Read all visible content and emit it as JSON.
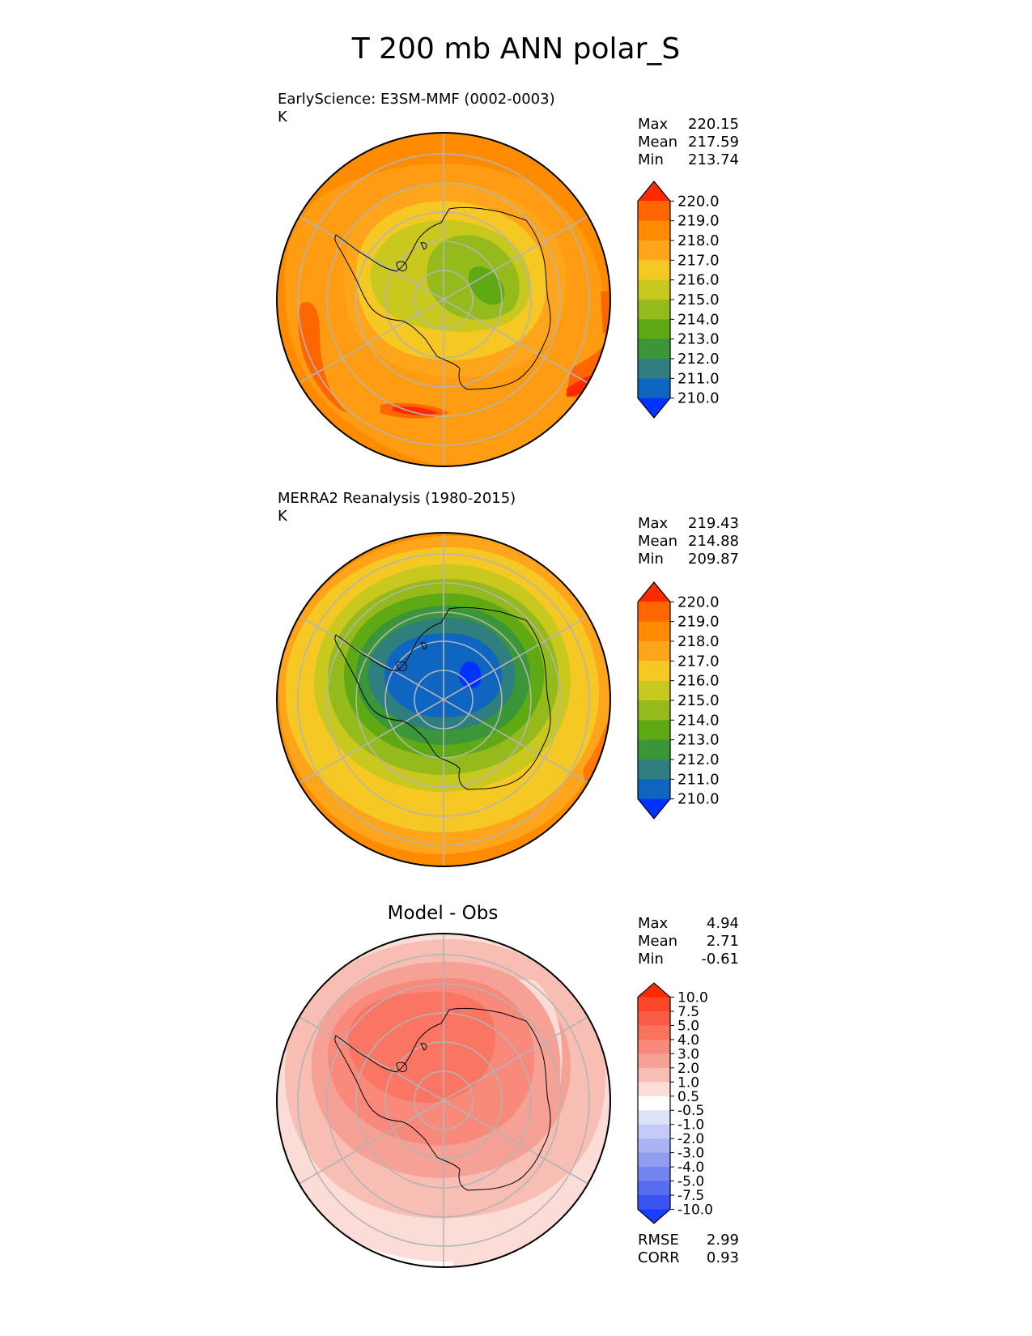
{
  "title": "T 200 mb ANN polar_S",
  "panels": [
    {
      "left_title": "EarlyScience: E3SM-MMF (0002-0003)",
      "units": "K",
      "stats": {
        "max_label": "Max",
        "max": "220.15",
        "mean_label": "Mean",
        "mean": "217.59",
        "min_label": "Min",
        "min": "213.74"
      }
    },
    {
      "left_title": "MERRA2 Reanalysis (1980-2015)",
      "units": "K",
      "stats": {
        "max_label": "Max",
        "max": "219.43",
        "mean_label": "Mean",
        "mean": "214.88",
        "min_label": "Min",
        "min": "209.87"
      }
    },
    {
      "center_title": "Model - Obs",
      "stats": {
        "max_label": "Max",
        "max": "4.94",
        "mean_label": "Mean",
        "mean": "2.71",
        "min_label": "Min",
        "min": "-0.61"
      },
      "metrics": {
        "rmse_label": "RMSE",
        "rmse": "2.99",
        "corr_label": "CORR",
        "corr": "0.93"
      }
    }
  ],
  "colorbars": {
    "temperature": {
      "ticks": [
        "220.0",
        "219.0",
        "218.0",
        "217.0",
        "216.0",
        "215.0",
        "214.0",
        "213.0",
        "212.0",
        "211.0",
        "210.0"
      ],
      "colors": [
        "#ff2a00",
        "#ff6600",
        "#ff8c00",
        "#ffa51c",
        "#f6c824",
        "#c9c81e",
        "#95ba1c",
        "#5ea914",
        "#3a9638",
        "#2e7f7e",
        "#0f66c0",
        "#0033ff"
      ]
    },
    "difference": {
      "ticks": [
        "10.0",
        "7.5",
        "5.0",
        "4.0",
        "3.0",
        "2.0",
        "1.0",
        "0.5",
        "-0.5",
        "-1.0",
        "-2.0",
        "-3.0",
        "-4.0",
        "-5.0",
        "-7.5",
        "-10.0"
      ],
      "colors": [
        "#ff2a00",
        "#fe472a",
        "#fc5c45",
        "#fb725f",
        "#f8897b",
        "#f6a196",
        "#f8bdb3",
        "#fbdcd6",
        "#ffffff",
        "#dde2f9",
        "#c4ccf6",
        "#a9b4f3",
        "#8e9cf1",
        "#7285ef",
        "#566df0",
        "#3a55f2",
        "#1a3cff"
      ]
    }
  },
  "chart_data": [
    {
      "type": "heatmap",
      "projection": "south-polar-stereographic",
      "title": "EarlyScience: E3SM-MMF (0002-0003)",
      "units": "K",
      "levels": [
        210,
        211,
        212,
        213,
        214,
        215,
        216,
        217,
        218,
        219,
        220
      ],
      "extend": "both",
      "max": 220.15,
      "mean": 217.59,
      "min": 213.74
    },
    {
      "type": "heatmap",
      "projection": "south-polar-stereographic",
      "title": "MERRA2 Reanalysis (1980-2015)",
      "units": "K",
      "levels": [
        210,
        211,
        212,
        213,
        214,
        215,
        216,
        217,
        218,
        219,
        220
      ],
      "extend": "both",
      "max": 219.43,
      "mean": 214.88,
      "min": 209.87
    },
    {
      "type": "heatmap",
      "projection": "south-polar-stereographic",
      "title": "Model - Obs",
      "levels": [
        -10,
        -7.5,
        -5,
        -4,
        -3,
        -2,
        -1,
        -0.5,
        0.5,
        1,
        2,
        3,
        4,
        5,
        7.5,
        10
      ],
      "extend": "both",
      "max": 4.94,
      "mean": 2.71,
      "min": -0.61,
      "rmse": 2.99,
      "corr": 0.93
    }
  ]
}
